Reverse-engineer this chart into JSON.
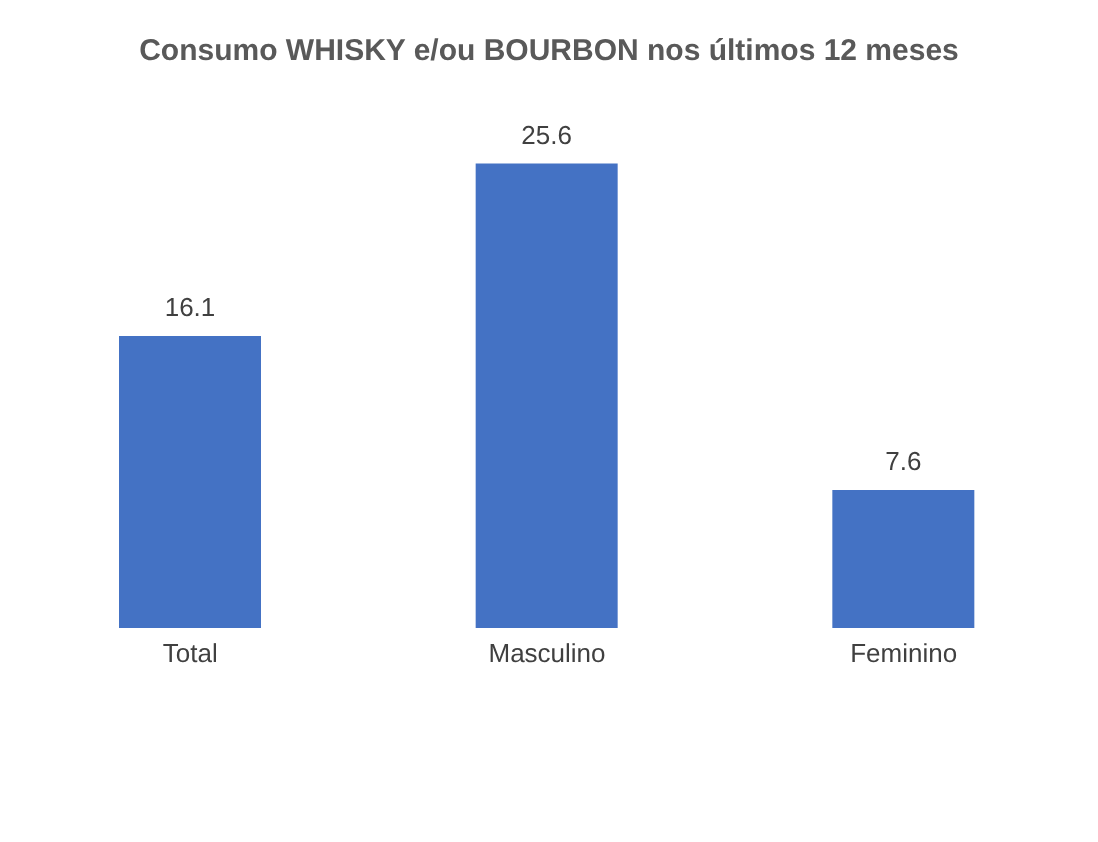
{
  "chart_data": {
    "type": "bar",
    "title": "Consumo WHISKY e/ou BOURBON nos últimos 12 meses",
    "categories": [
      "Total",
      "Masculino",
      "Feminino"
    ],
    "values": [
      16.1,
      25.6,
      7.6
    ],
    "color": "#4472c4",
    "data_labels": true
  }
}
